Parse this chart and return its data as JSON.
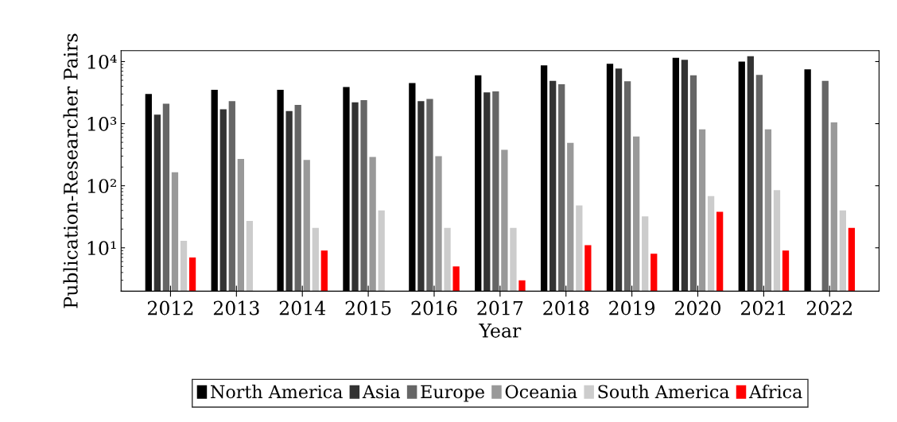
{
  "chart_data": {
    "type": "bar",
    "xlabel": "Year",
    "ylabel": "Publication-Researcher Pairs",
    "categories": [
      "2012",
      "2013",
      "2014",
      "2015",
      "2016",
      "2017",
      "2018",
      "2019",
      "2020",
      "2021",
      "2022"
    ],
    "series": [
      {
        "name": "North America",
        "color": "#000000",
        "values": [
          3000,
          3500,
          3500,
          3900,
          4500,
          6000,
          8700,
          9200,
          11500,
          10000,
          7500
        ]
      },
      {
        "name": "Asia",
        "color": "#333333",
        "values": [
          1400,
          1700,
          1600,
          2200,
          2300,
          3200,
          4900,
          7700,
          10700,
          12200,
          null
        ]
      },
      {
        "name": "Europe",
        "color": "#666666",
        "values": [
          2100,
          2300,
          2000,
          2400,
          2500,
          3300,
          4300,
          4800,
          6000,
          6100,
          4900
        ]
      },
      {
        "name": "Oceania",
        "color": "#999999",
        "values": [
          165,
          270,
          260,
          290,
          300,
          380,
          490,
          620,
          810,
          810,
          1050
        ]
      },
      {
        "name": "South America",
        "color": "#cccccc",
        "values": [
          13,
          27,
          21,
          40,
          21,
          21,
          48,
          32,
          68,
          85,
          40
        ]
      },
      {
        "name": "Africa",
        "color": "#ff0000",
        "values": [
          7,
          null,
          9,
          null,
          5,
          3,
          11,
          8,
          38,
          9,
          21
        ]
      }
    ],
    "log": "y",
    "ylim": [
      2,
      15000
    ],
    "yticks": [
      {
        "value": 10,
        "label": "10¹"
      },
      {
        "value": 100,
        "label": "10²"
      },
      {
        "value": 1000,
        "label": "10³"
      },
      {
        "value": 10000,
        "label": "10⁴"
      }
    ],
    "grid": false,
    "legend": "bottom"
  }
}
